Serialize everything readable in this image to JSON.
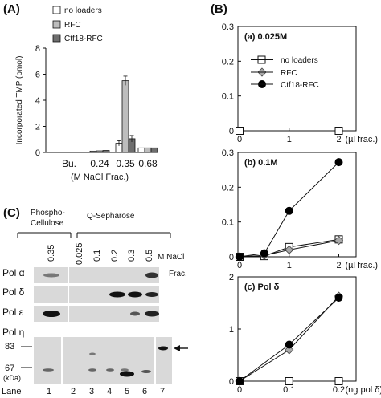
{
  "panel_labels": {
    "A": "(A)",
    "B": "(B)",
    "C": "(C)"
  },
  "legend": {
    "no_loaders": "no loaders",
    "rfc": "RFC",
    "ctf18": "Ctf18-RFC"
  },
  "colors": {
    "no_loaders": "#ffffff",
    "rfc": "#bdbdbd",
    "ctf18": "#6e6e6e"
  },
  "chart_data": [
    {
      "type": "bar",
      "panel": "(A)",
      "ylabel": "Incorporated TMP (pmol)",
      "xlabel": "(M NaCl Frac.)",
      "categories": [
        "Bu.",
        "0.24",
        "0.35",
        "0.68"
      ],
      "ylim": [
        0,
        8
      ],
      "yticks": [
        0,
        2,
        4,
        6,
        8
      ],
      "series": [
        {
          "name": "no loaders",
          "values": [
            0,
            0.1,
            0.7,
            0.35
          ],
          "errors": [
            0,
            0.03,
            0.2,
            0.05
          ]
        },
        {
          "name": "RFC",
          "values": [
            0,
            0.12,
            5.5,
            0.35
          ],
          "errors": [
            0,
            0.03,
            0.35,
            0.05
          ]
        },
        {
          "name": "Ctf18-RFC",
          "values": [
            0,
            0.15,
            1.05,
            0.35
          ],
          "errors": [
            0,
            0.03,
            0.25,
            0.05
          ]
        }
      ],
      "legend_position": "top-left"
    },
    {
      "type": "line",
      "panel": "(B)",
      "subtitle": "(a) 0.025M",
      "xlabel": "(µl frac.)",
      "x": [
        0,
        1,
        2
      ],
      "xticks": [
        0,
        1,
        2
      ],
      "ylim": [
        0,
        0.3
      ],
      "yticks": [
        0,
        0.1,
        0.2,
        0.3
      ],
      "series": [
        {
          "name": "no loaders",
          "x": [
            0,
            2
          ],
          "y": [
            0,
            0
          ]
        },
        {
          "name": "RFC",
          "x": [],
          "y": []
        },
        {
          "name": "Ctf18-RFC",
          "x": [],
          "y": []
        }
      ],
      "legend_position": "right"
    },
    {
      "type": "line",
      "panel": "(B)",
      "subtitle": "(b) 0.1M",
      "xlabel": "(µl frac.)",
      "xticks": [
        0,
        1,
        2
      ],
      "ylim": [
        0,
        0.3
      ],
      "yticks": [
        0,
        0.1,
        0.2,
        0.3
      ],
      "series": [
        {
          "name": "no loaders",
          "x": [
            0,
            0.5,
            1,
            2
          ],
          "y": [
            0,
            0.002,
            0.028,
            0.05
          ]
        },
        {
          "name": "RFC",
          "x": [
            0,
            0.5,
            1,
            2
          ],
          "y": [
            0,
            0.004,
            0.02,
            0.047
          ]
        },
        {
          "name": "Ctf18-RFC",
          "x": [
            0,
            0.5,
            1,
            2
          ],
          "y": [
            0,
            0.01,
            0.132,
            0.272
          ]
        }
      ]
    },
    {
      "type": "line",
      "panel": "(B)",
      "subtitle": "(c) Pol δ",
      "xlabel": "(ng pol δ)",
      "xticks": [
        0,
        0.1,
        0.2
      ],
      "ylim": [
        0,
        2
      ],
      "yticks": [
        0,
        1,
        2
      ],
      "series": [
        {
          "name": "no loaders",
          "x": [
            0,
            0.1,
            0.2
          ],
          "y": [
            0,
            0,
            0
          ]
        },
        {
          "name": "RFC",
          "x": [
            0,
            0.1,
            0.2
          ],
          "y": [
            0,
            0.6,
            1.63
          ]
        },
        {
          "name": "Ctf18-RFC",
          "x": [
            0,
            0.1,
            0.2
          ],
          "y": [
            0,
            0.7,
            1.6
          ]
        }
      ]
    }
  ],
  "gel": {
    "header_phospho": "Phospho-",
    "header_phospho2": "Cellulose",
    "header_q": "Q-Sepharose",
    "fractions": [
      "0.35",
      "0.025",
      "0.1",
      "0.2",
      "0.3",
      "0.5"
    ],
    "nacl_label": "M NaCl",
    "frac_label": "Frac.",
    "rows": [
      "Pol α",
      "Pol δ",
      "Pol ε"
    ],
    "pol_eta": "Pol η",
    "mw_83": "83",
    "mw_67": "67",
    "mw_unit": "(kDa)",
    "lane_label": "Lane",
    "lanes": [
      "1",
      "2",
      "3",
      "4",
      "5",
      "6",
      "7"
    ]
  }
}
